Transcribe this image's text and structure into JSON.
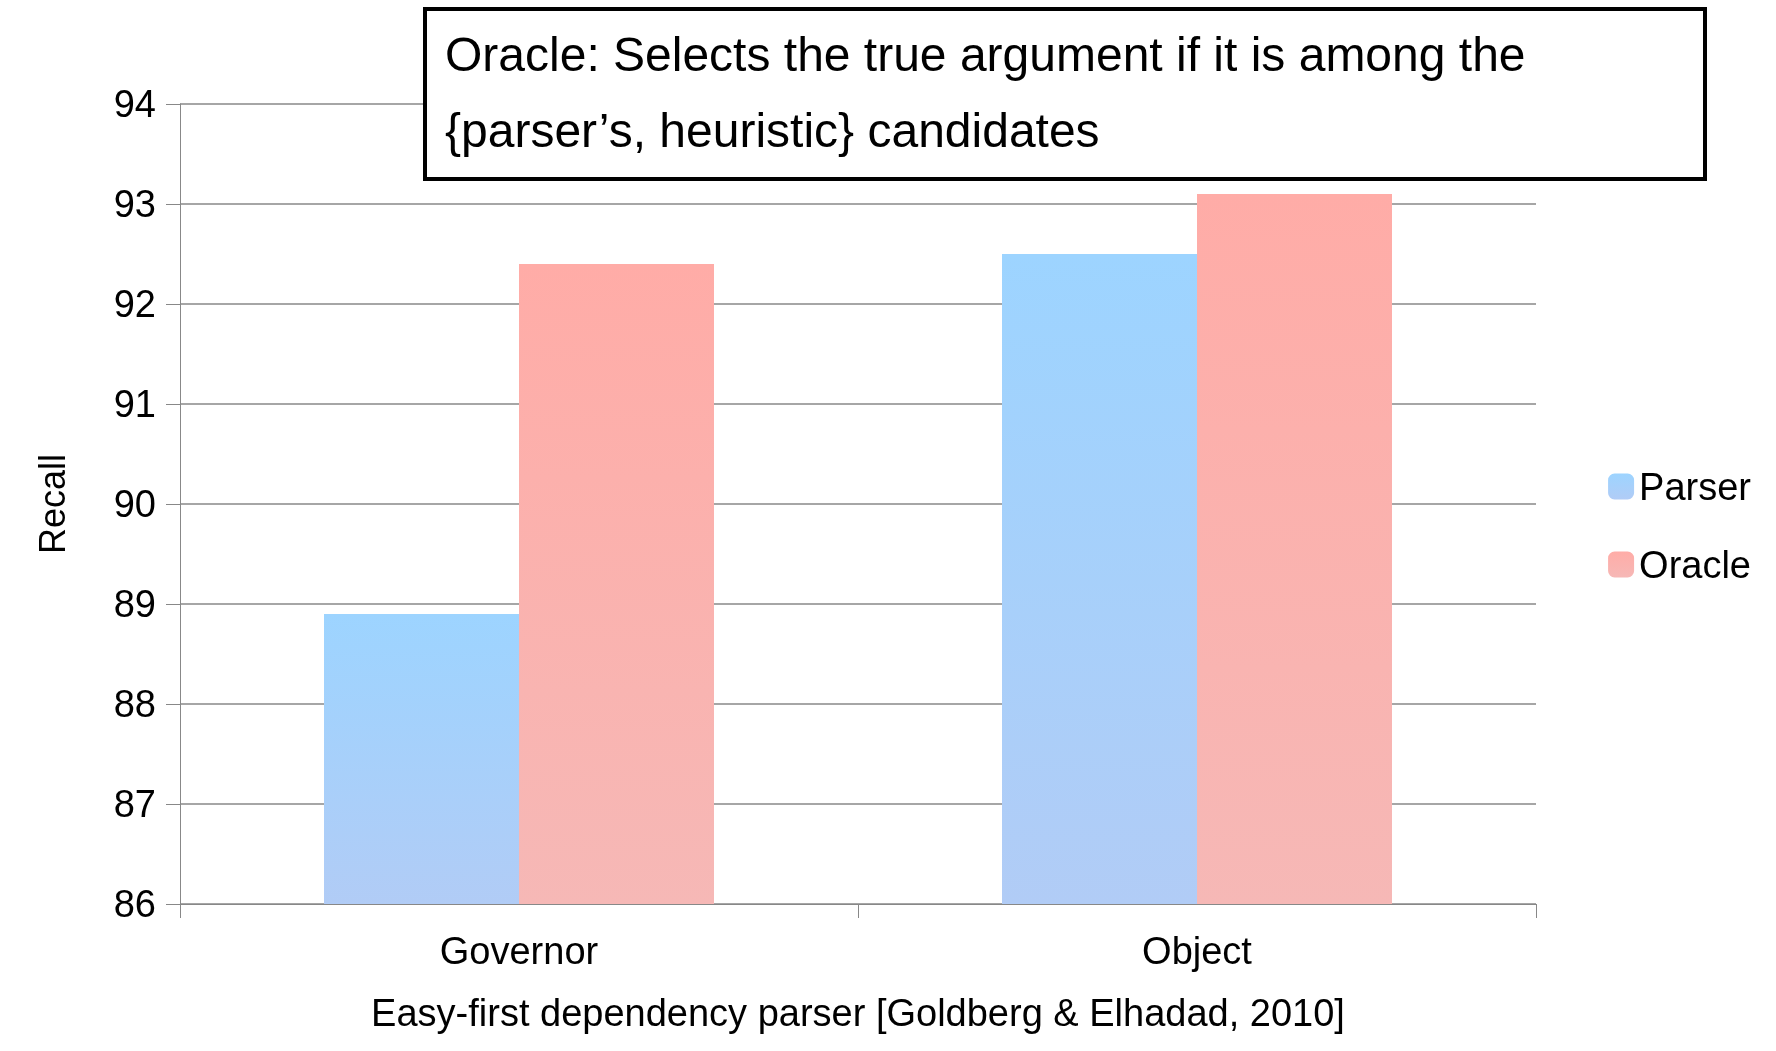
{
  "chart_data": {
    "type": "bar",
    "xlabel": "Easy-first dependency parser [Goldberg & Elhadad, 2010]",
    "ylabel": "Recall",
    "categories": [
      "Governor",
      "Object"
    ],
    "series": [
      {
        "name": "Parser",
        "color": "#7eaaf0",
        "values": [
          88.9,
          92.5
        ]
      },
      {
        "name": "Oracle",
        "color": "#f08a86",
        "values": [
          92.4,
          93.1
        ]
      }
    ],
    "ylim": [
      86,
      94
    ],
    "yticks": [
      86,
      87,
      88,
      89,
      90,
      91,
      92,
      93,
      94
    ],
    "grid": "y",
    "legend": "right",
    "annotations": [
      "Oracle: Selects the true argument if it is among the {parser’s, heuristic} candidates"
    ]
  }
}
